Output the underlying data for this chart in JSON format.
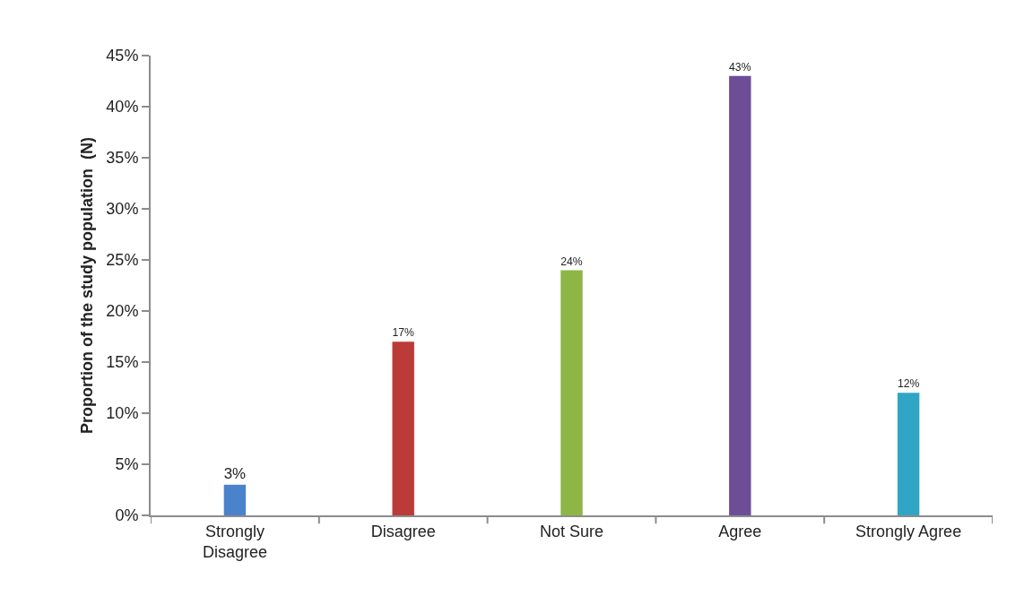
{
  "chart_data": {
    "type": "bar",
    "ylabel": "Proportion of the study population  (N)",
    "categories": [
      "Strongly Disagree",
      "Disagree",
      "Not Sure",
      "Agree",
      "Strongly Agree"
    ],
    "values": [
      3,
      17,
      24,
      43,
      12
    ],
    "colors": [
      "#4a82cc",
      "#bb3b38",
      "#8db646",
      "#6c4d96",
      "#30a5c6"
    ],
    "value_labels": [
      "3%",
      "17%",
      "24%",
      "43%",
      "12%"
    ],
    "ylim": [
      0,
      45
    ],
    "yticks": [
      {
        "value": 0,
        "label": "0%"
      },
      {
        "value": 5,
        "label": "5%"
      },
      {
        "value": 10,
        "label": "10%"
      },
      {
        "value": 15,
        "label": "15%"
      },
      {
        "value": 20,
        "label": "20%"
      },
      {
        "value": 25,
        "label": "25%"
      },
      {
        "value": 30,
        "label": "30%"
      },
      {
        "value": 35,
        "label": "35%"
      },
      {
        "value": 40,
        "label": "40%"
      },
      {
        "value": 45,
        "label": "45%"
      }
    ]
  }
}
